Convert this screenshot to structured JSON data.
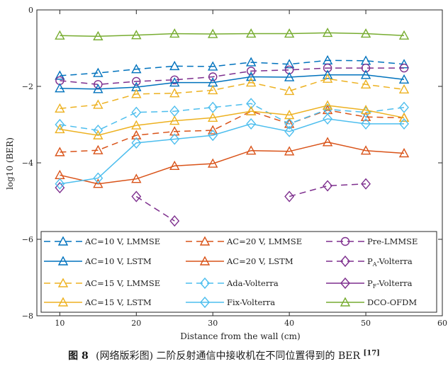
{
  "chart_data": {
    "type": "line",
    "title": "",
    "xlabel": "Distance from the wall (cm)",
    "ylabel": "log10 (BER)",
    "xlim": [
      7,
      60
    ],
    "ylim": [
      -8,
      0
    ],
    "xticks": [
      10,
      20,
      30,
      40,
      50,
      60
    ],
    "yticks": [
      0,
      -2,
      -4,
      -6,
      -8
    ],
    "xtick_labels": [
      "10",
      "20",
      "30",
      "40",
      "50",
      "60"
    ],
    "ytick_labels": [
      "0",
      "−2",
      "−4",
      "−6",
      "−8"
    ],
    "grid": false,
    "legend_position": "bottom-inside",
    "series": [
      {
        "name": "AC=10 V, LMMSE",
        "color": "#0072BD",
        "dash": true,
        "marker": "triangle",
        "x": [
          10,
          15,
          20,
          25,
          30,
          35,
          40,
          45,
          50,
          55
        ],
        "y": [
          -1.72,
          -1.65,
          -1.55,
          -1.47,
          -1.48,
          -1.37,
          -1.42,
          -1.32,
          -1.33,
          -1.42
        ]
      },
      {
        "name": "AC=20 V, LMMSE",
        "color": "#D95319",
        "dash": true,
        "marker": "triangle",
        "x": [
          10,
          15,
          20,
          25,
          30,
          35,
          40,
          45,
          50,
          55
        ],
        "y": [
          -3.72,
          -3.67,
          -3.28,
          -3.18,
          -3.15,
          -2.65,
          -2.98,
          -2.62,
          -2.8,
          -2.82
        ]
      },
      {
        "name": "Pre-LMMSE",
        "color": "#7E2F8E",
        "dash": true,
        "marker": "circle",
        "x": [
          10,
          15,
          20,
          25,
          30,
          35,
          40,
          45,
          50,
          55
        ],
        "y": [
          -1.85,
          -1.95,
          -1.87,
          -1.83,
          -1.75,
          -1.6,
          -1.57,
          -1.52,
          -1.52,
          -1.52
        ]
      },
      {
        "name": "AC=10 V, LSTM",
        "color": "#0072BD",
        "dash": false,
        "marker": "triangle",
        "x": [
          10,
          15,
          20,
          25,
          30,
          35,
          40,
          45,
          50,
          55
        ],
        "y": [
          -2.05,
          -2.07,
          -2.02,
          -1.9,
          -1.9,
          -1.75,
          -1.76,
          -1.7,
          -1.7,
          -1.82
        ]
      },
      {
        "name": "AC=20 V, LSTM",
        "color": "#D95319",
        "dash": false,
        "marker": "triangle",
        "x": [
          10,
          15,
          20,
          25,
          30,
          35,
          40,
          45,
          50,
          55
        ],
        "y": [
          -4.32,
          -4.55,
          -4.42,
          -4.08,
          -4.02,
          -3.68,
          -3.7,
          -3.46,
          -3.68,
          -3.75
        ]
      },
      {
        "name": "PA-Volterra",
        "color": "#7E2F8E",
        "dash": true,
        "marker": "diamond",
        "x": [
          10,
          20,
          25,
          40,
          45,
          50
        ],
        "y": [
          -4.65,
          -4.88,
          -5.52,
          -4.88,
          -4.6,
          -4.55
        ],
        "segments": [
          [
            0
          ],
          [
            1,
            2
          ],
          [
            3,
            4,
            5
          ]
        ]
      },
      {
        "name": "AC=15 V, LMMSE",
        "color": "#EDB120",
        "dash": true,
        "marker": "triangle",
        "x": [
          10,
          15,
          20,
          25,
          30,
          35,
          40,
          45,
          50,
          55
        ],
        "y": [
          -2.58,
          -2.48,
          -2.2,
          -2.18,
          -2.1,
          -1.9,
          -2.12,
          -1.8,
          -1.95,
          -2.08
        ]
      },
      {
        "name": "Ada-Volterra",
        "color": "#4DBEEE",
        "dash": true,
        "marker": "diamond",
        "x": [
          10,
          15,
          20,
          25,
          30,
          35,
          40,
          45,
          50,
          55
        ],
        "y": [
          -3.0,
          -3.15,
          -2.68,
          -2.65,
          -2.55,
          -2.45,
          -2.98,
          -2.6,
          -2.68,
          -2.55
        ]
      },
      {
        "name": "PF-Volterra",
        "color": "#7E2F8E",
        "dash": false,
        "marker": "diamond",
        "x": [],
        "y": []
      },
      {
        "name": "AC=15 V, LSTM",
        "color": "#EDB120",
        "dash": false,
        "marker": "triangle",
        "x": [
          10,
          15,
          20,
          25,
          30,
          35,
          40,
          45,
          50,
          55
        ],
        "y": [
          -3.12,
          -3.28,
          -3.02,
          -2.9,
          -2.82,
          -2.65,
          -2.75,
          -2.5,
          -2.62,
          -2.82
        ]
      },
      {
        "name": "Fix-Volterra",
        "color": "#4DBEEE",
        "dash": false,
        "marker": "diamond",
        "x": [
          10,
          15,
          20,
          25,
          30,
          35,
          40,
          45,
          50,
          55
        ],
        "y": [
          -4.55,
          -4.4,
          -3.48,
          -3.38,
          -3.28,
          -2.98,
          -3.18,
          -2.85,
          -2.98,
          -2.98
        ]
      },
      {
        "name": "DCO-OFDM",
        "color": "#77AC30",
        "dash": false,
        "marker": "triangle",
        "x": [
          10,
          15,
          20,
          25,
          30,
          35,
          40,
          45,
          50,
          55
        ],
        "y": [
          -0.67,
          -0.69,
          -0.66,
          -0.62,
          -0.63,
          -0.62,
          -0.62,
          -0.6,
          -0.62,
          -0.67
        ]
      }
    ],
    "legend": [
      {
        "label": "AC=10 V, LMMSE",
        "series": 0
      },
      {
        "label": "AC=20 V, LMMSE",
        "series": 1
      },
      {
        "label": "Pre-LMMSE",
        "series": 2
      },
      {
        "label": "AC=10 V, LSTM",
        "series": 3
      },
      {
        "label": "AC=20 V, LSTM",
        "series": 4
      },
      {
        "label": "P",
        "sub": "A",
        "suffix": "-Volterra",
        "series": 5
      },
      {
        "label": "AC=15 V, LMMSE",
        "series": 6
      },
      {
        "label": "Ada-Volterra",
        "series": 7
      },
      {
        "label": "P",
        "sub": "F",
        "suffix": "-Volterra",
        "series": 8
      },
      {
        "label": "AC=15 V, LSTM",
        "series": 9
      },
      {
        "label": "Fix-Volterra",
        "series": 10
      },
      {
        "label": "DCO-OFDM",
        "series": 11
      }
    ]
  },
  "caption": {
    "figure_number": "图 8",
    "text": "(网络版彩图) 二阶反射通信中接收机在不同位置得到的 BER",
    "citation": "[17]"
  }
}
